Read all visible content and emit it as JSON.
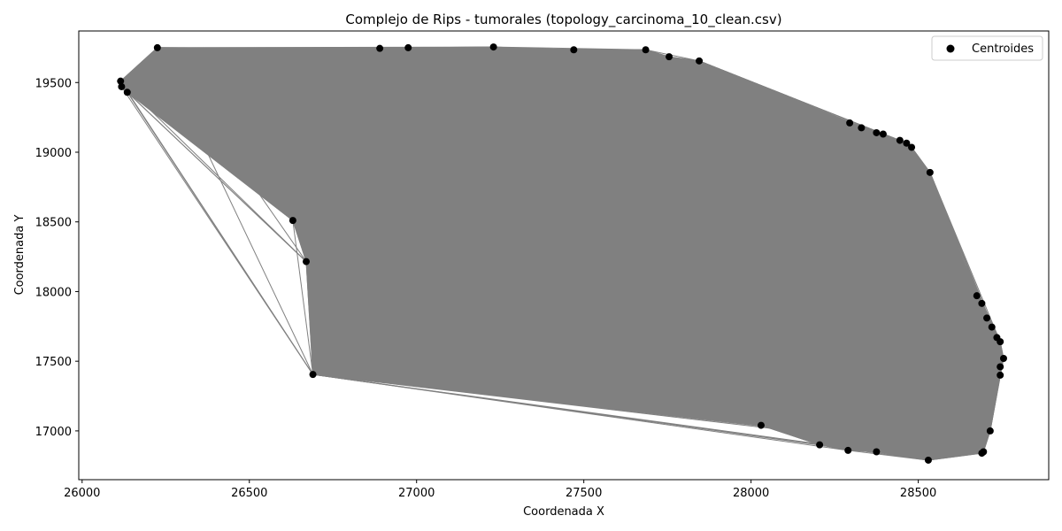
{
  "chart_data": {
    "type": "scatter",
    "title": "Complejo de Rips - tumorales (topology_carcinoma_10_clean.csv)",
    "xlabel": "Coordenada X",
    "ylabel": "Coordenada Y",
    "xlim": [
      25990,
      28890
    ],
    "ylim": [
      16650,
      19870
    ],
    "xticks": [
      26000,
      26500,
      27000,
      27500,
      28000,
      28500
    ],
    "yticks": [
      17000,
      17500,
      18000,
      18500,
      19000,
      19500
    ],
    "xtick_labels": [
      "26000",
      "26500",
      "27000",
      "27500",
      "28000",
      "28500"
    ],
    "ytick_labels": [
      "17000",
      "17500",
      "18000",
      "18500",
      "19000",
      "19500"
    ],
    "legend": {
      "position": "top-right",
      "entries": [
        "Centroides"
      ]
    },
    "edge_color": "#808080",
    "point_color": "#000000",
    "series": [
      {
        "name": "Centroides",
        "points": [
          [
            26115,
            19510
          ],
          [
            26118,
            19470
          ],
          [
            26135,
            19430
          ],
          [
            26225,
            19750
          ],
          [
            26890,
            19745
          ],
          [
            26975,
            19750
          ],
          [
            27230,
            19755
          ],
          [
            27470,
            19735
          ],
          [
            27685,
            19735
          ],
          [
            27755,
            19685
          ],
          [
            27845,
            19655
          ],
          [
            28295,
            19210
          ],
          [
            28330,
            19175
          ],
          [
            28375,
            19140
          ],
          [
            28395,
            19130
          ],
          [
            28445,
            19085
          ],
          [
            28465,
            19065
          ],
          [
            28480,
            19035
          ],
          [
            28535,
            18855
          ],
          [
            28675,
            17970
          ],
          [
            28690,
            17915
          ],
          [
            28705,
            17810
          ],
          [
            28720,
            17745
          ],
          [
            28735,
            17670
          ],
          [
            28745,
            17640
          ],
          [
            28755,
            17520
          ],
          [
            28745,
            17460
          ],
          [
            28745,
            17400
          ],
          [
            28715,
            17000
          ],
          [
            28695,
            16850
          ],
          [
            28690,
            16840
          ],
          [
            28530,
            16790
          ],
          [
            28375,
            16850
          ],
          [
            28290,
            16860
          ],
          [
            28205,
            16900
          ],
          [
            28030,
            17040
          ],
          [
            26690,
            17405
          ],
          [
            26670,
            18215
          ],
          [
            26630,
            18510
          ]
        ]
      }
    ]
  }
}
